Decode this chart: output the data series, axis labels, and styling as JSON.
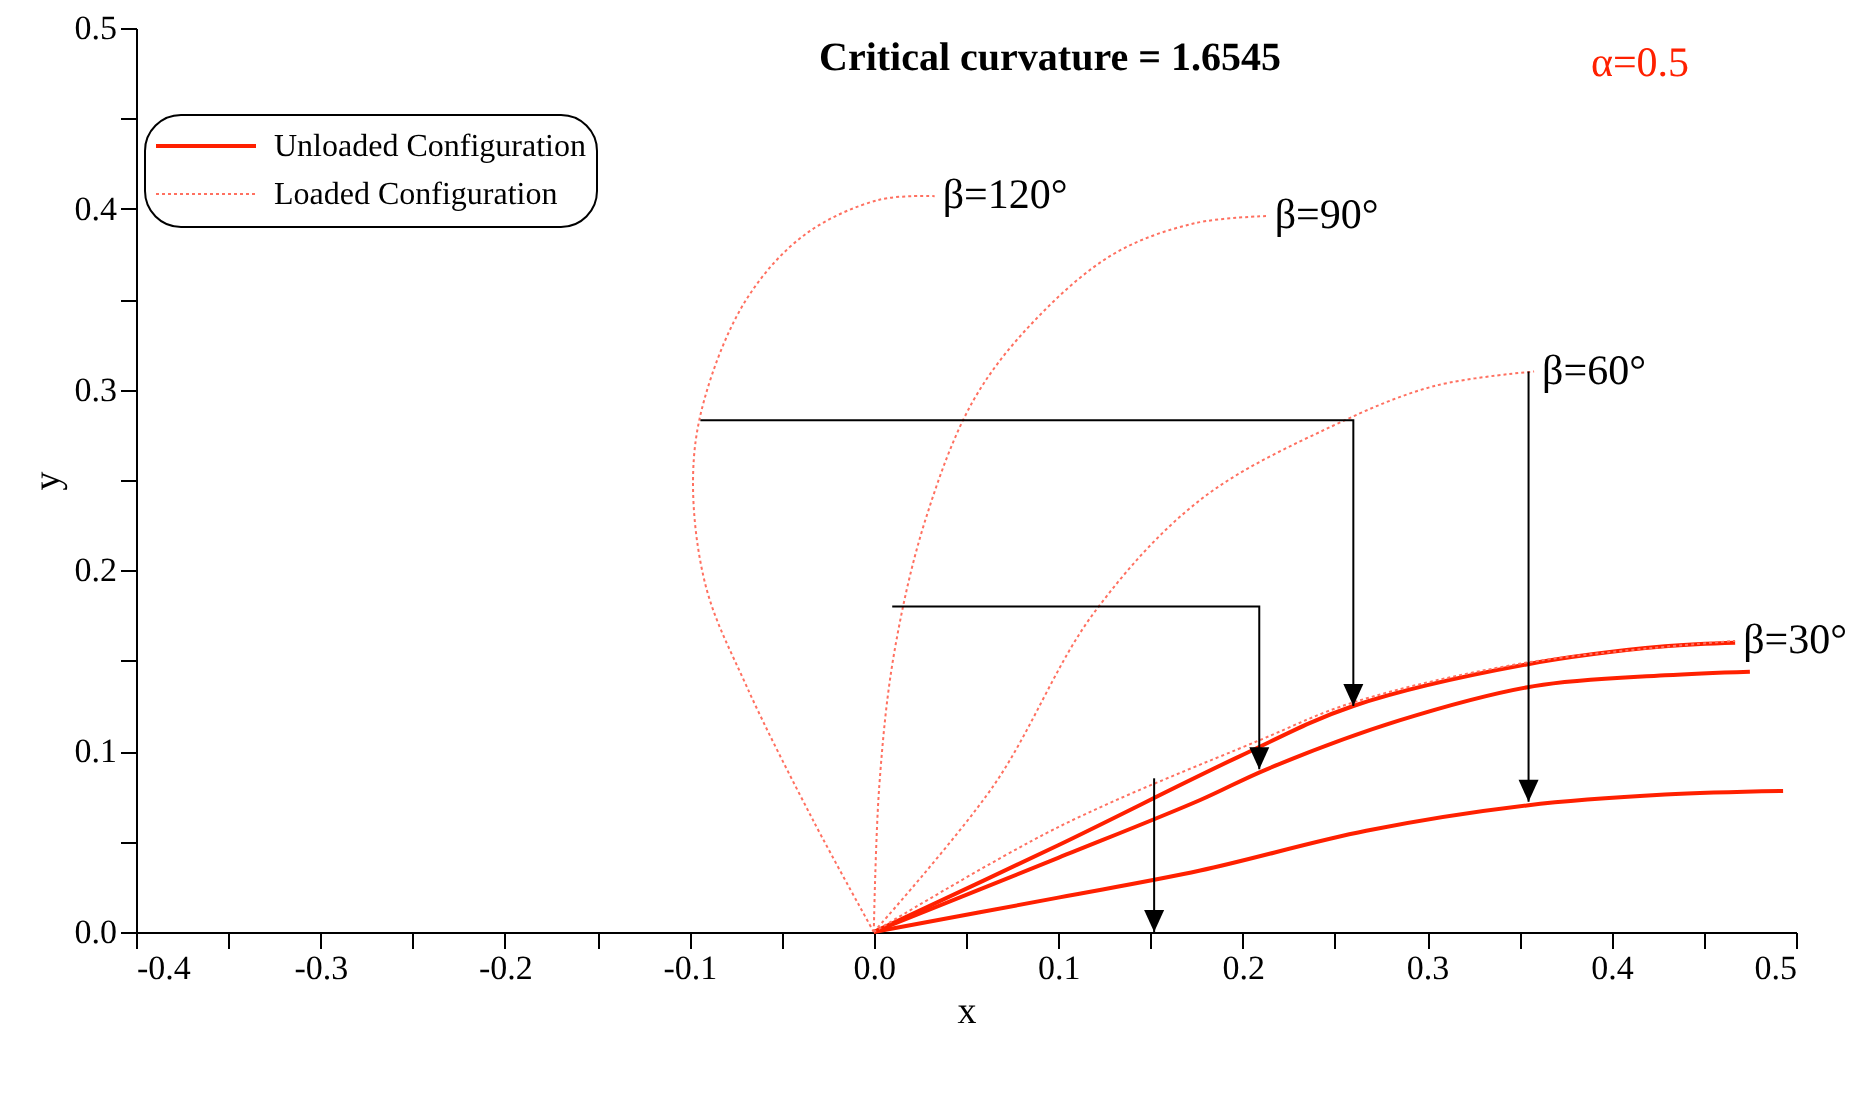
{
  "chart_data": {
    "type": "line",
    "title": "Critical curvature = 1.6545",
    "xlabel": "x",
    "ylabel": "y",
    "series": [
      {
        "name": "Unloaded Configuration",
        "color": "#ff2000",
        "line_style": "solid",
        "x": [
          0,
          0.1,
          0.198,
          0.26,
          0.354,
          0.429,
          0.467,
          null,
          0,
          0.1,
          0.177,
          0.213,
          0.285,
          0.358,
          0.429,
          0.475,
          null,
          0,
          0.1,
          0.177,
          0.267,
          0.354,
          0.429,
          0.493
        ],
        "values": [
          0,
          0.048,
          0.097,
          0.125,
          0.148,
          0.158,
          0.16,
          null,
          0,
          0.041,
          0.073,
          0.09,
          0.117,
          0.136,
          0.142,
          0.144,
          null,
          0,
          0.019,
          0.034,
          0.056,
          0.07,
          0.076,
          0.078
        ]
      },
      {
        "name": "Loaded Configuration",
        "color": "#ff7060",
        "line_style": "dotted",
        "x": [
          0,
          -0.033,
          -0.069,
          -0.091,
          -0.098,
          -0.092,
          -0.069,
          -0.037,
          0.003,
          0.033,
          null,
          0,
          0.003,
          0.011,
          0.028,
          0.054,
          0.087,
          0.13,
          0.174,
          0.213,
          null,
          0,
          0.065,
          0.119,
          0.177,
          0.249,
          0.304,
          0.358,
          null,
          0,
          0.1,
          0.209,
          0.26,
          0.354,
          0.467
        ],
        "values": [
          0,
          0.062,
          0.136,
          0.191,
          0.25,
          0.294,
          0.35,
          0.386,
          0.405,
          0.407,
          null,
          0,
          0.081,
          0.154,
          0.228,
          0.294,
          0.338,
          0.375,
          0.392,
          0.396,
          null,
          0,
          0.081,
          0.176,
          0.239,
          0.28,
          0.302,
          0.31,
          null,
          0,
          0.058,
          0.106,
          0.127,
          0.149,
          0.161
        ]
      }
    ],
    "annotations": [
      {
        "text": "β=120°",
        "x": 0.033,
        "y": 0.407
      },
      {
        "text": "β=90°",
        "x": 0.213,
        "y": 0.396
      },
      {
        "text": "β=60°",
        "x": 0.358,
        "y": 0.31
      },
      {
        "text": "β=30°",
        "x": 0.467,
        "y": 0.161
      },
      "α=0.5"
    ],
    "xlim": [
      -0.4,
      0.5
    ],
    "xticks": [
      {
        "value": -0.4,
        "label": "-0.4"
      },
      {
        "value": -0.35,
        "label": null
      },
      {
        "value": -0.3,
        "label": "-0.3"
      },
      {
        "value": -0.25,
        "label": null
      },
      {
        "value": -0.2,
        "label": "-0.2"
      },
      {
        "value": -0.15,
        "label": null
      },
      {
        "value": -0.1,
        "label": "-0.1"
      },
      {
        "value": -0.05,
        "label": null
      },
      {
        "value": 0,
        "label": "0.0"
      },
      {
        "value": 0.05,
        "label": null
      },
      {
        "value": 0.1,
        "label": "0.1"
      },
      {
        "value": 0.15,
        "label": null
      },
      {
        "value": 0.2,
        "label": "0.2"
      },
      {
        "value": 0.25,
        "label": null
      },
      {
        "value": 0.3,
        "label": "0.3"
      },
      {
        "value": 0.35,
        "label": null
      },
      {
        "value": 0.4,
        "label": "0.4"
      },
      {
        "value": 0.45,
        "label": null
      },
      {
        "value": 0.5,
        "label": "0.5"
      }
    ],
    "ylim": [
      0,
      0.5
    ],
    "yticks": [
      {
        "value": 0,
        "label": "0.0"
      },
      {
        "value": 0.05,
        "label": null
      },
      {
        "value": 0.1,
        "label": "0.1"
      },
      {
        "value": 0.15,
        "label": null
      },
      {
        "value": 0.2,
        "label": "0.2"
      },
      {
        "value": 0.25,
        "label": null
      },
      {
        "value": 0.3,
        "label": "0.3"
      },
      {
        "value": 0.35,
        "label": null
      },
      {
        "value": 0.4,
        "label": "0.4"
      },
      {
        "value": 0.45,
        "label": null
      },
      {
        "value": 0.5,
        "label": "0.5"
      }
    ],
    "grid": false,
    "legend": "top left",
    "marker": "none"
  }
}
